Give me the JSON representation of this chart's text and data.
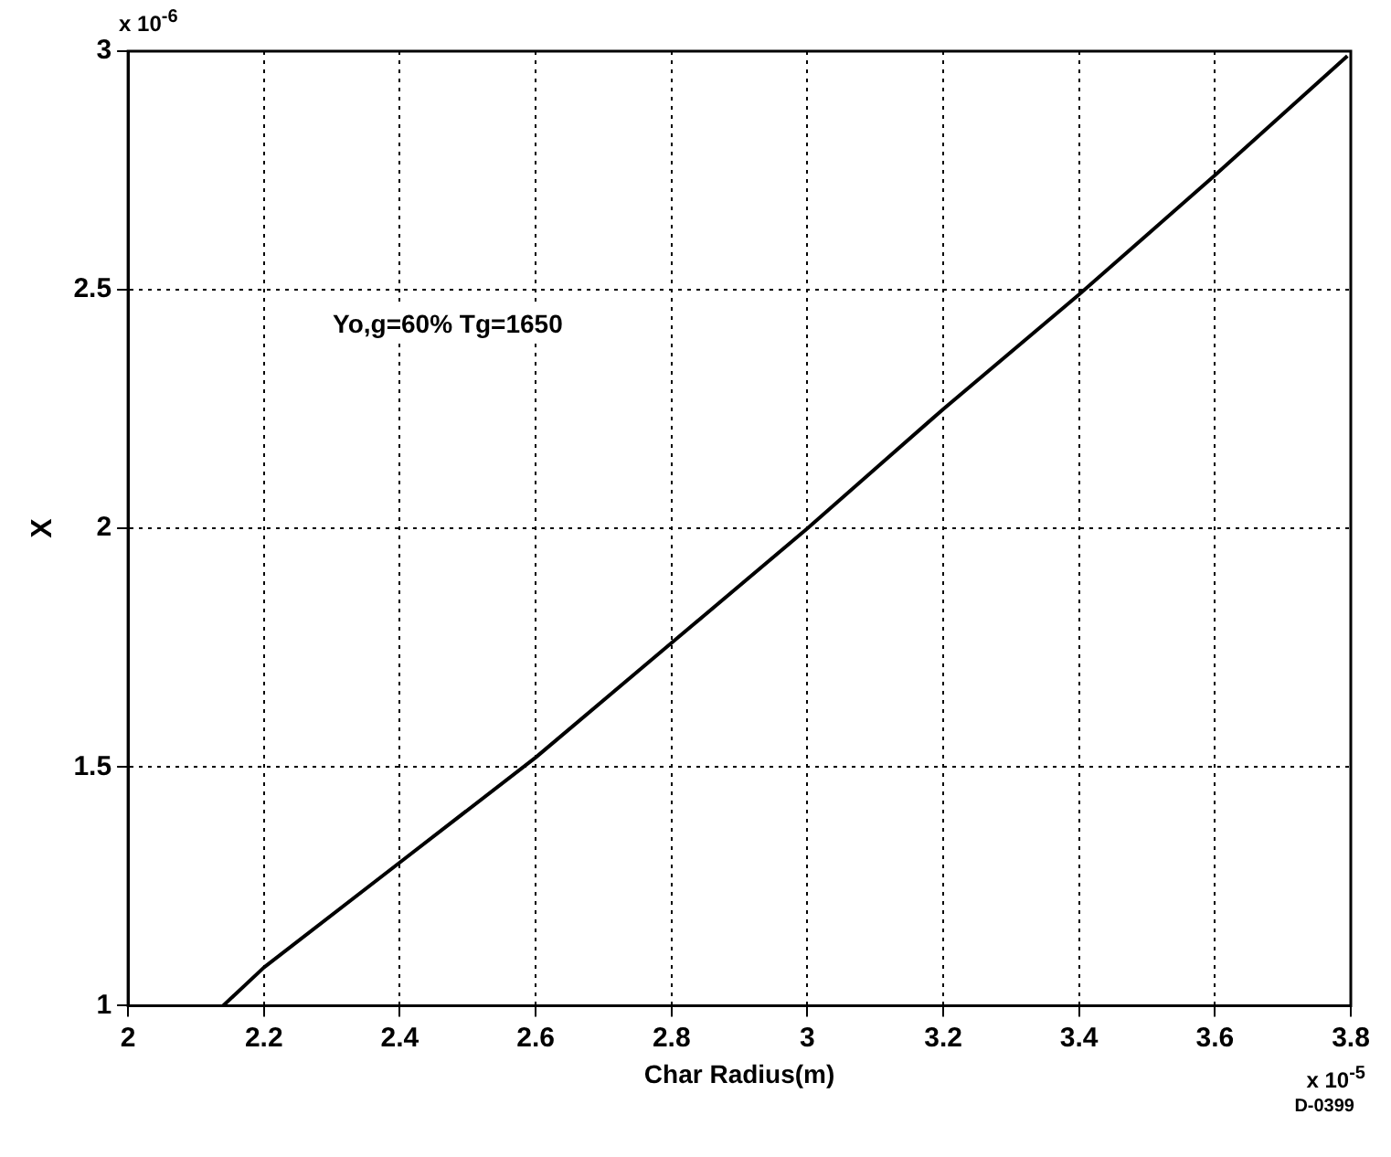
{
  "chart_data": {
    "type": "line",
    "xlabel": "Char Radius(m)",
    "ylabel": "X",
    "annotations": [
      "Yo,g=60% Tg=1650",
      "x 10$^{-6}$",
      "x 10$^{-5}$",
      "D-0399"
    ],
    "series": [
      {
        "color": "#000000",
        "x": [
          2.14,
          2.2,
          2.4,
          2.6,
          2.8,
          3.0,
          3.2,
          3.4,
          3.6,
          3.795
        ],
        "values": [
          1.0,
          1.08,
          1.3,
          1.52,
          1.76,
          2.0,
          2.25,
          2.49,
          2.74,
          2.99
        ]
      }
    ],
    "xlim": [
      2,
      3.8
    ],
    "xticks": [
      2,
      2.2,
      2.4,
      2.6,
      2.8,
      3,
      3.2,
      3.4,
      3.6,
      3.8
    ],
    "ylim": [
      1,
      3
    ],
    "yticks": [
      1,
      1.5,
      2,
      2.5,
      3
    ],
    "grid": true,
    "legend": false,
    "marker": "none",
    "line_style": "solid"
  }
}
